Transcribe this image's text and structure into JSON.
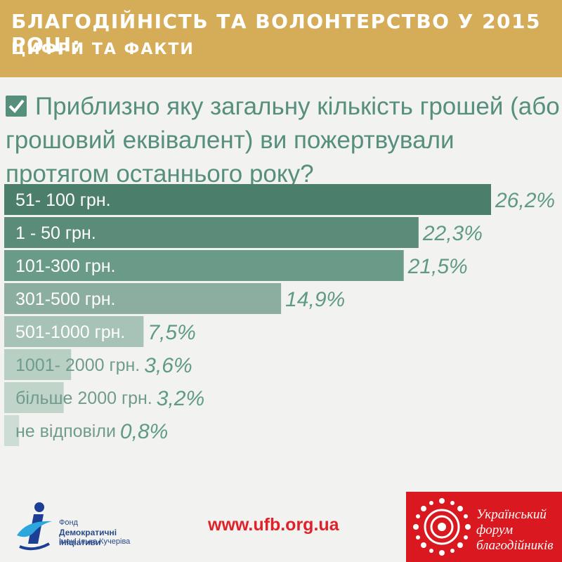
{
  "header": {
    "title": "БЛАГОДІЙНІСТЬ ТА ВОЛОНТЕРСТВО У 2015 РОЦІ:",
    "subtitle": "ЦИФРИ ТА ФАКТИ"
  },
  "question": {
    "text": "Приблизно яку загальну кількість грошей (або грошовий еквівалент) ви пожертвували протягом останнього року?"
  },
  "chart_data": {
    "type": "bar",
    "orientation": "horizontal",
    "categories": [
      "51- 100 грн.",
      "1 - 50 грн.",
      "101-300 грн.",
      "301-500 грн.",
      "501-1000 грн.",
      "1001- 2000 грн.",
      "більше 2000 грн.",
      "не відповіли"
    ],
    "values": [
      26.2,
      22.3,
      21.5,
      14.9,
      7.5,
      3.6,
      3.2,
      0.8
    ],
    "value_labels": [
      "26,2%",
      "22,3%",
      "21,5%",
      "14,9%",
      "7,5%",
      "3,6%",
      "3,2%",
      "0,8%"
    ],
    "unit": "%",
    "colors": [
      "#4c7e6c",
      "#5b8c7a",
      "#6a9b89",
      "#8caea0",
      "#a7c2b6",
      "#b8cfc4",
      "#c0d4ca",
      "#cddcd5"
    ],
    "title": "",
    "xlabel": "",
    "ylabel": "",
    "grid": false,
    "legend": "none"
  },
  "footer": {
    "url": "www.ufb.org.ua",
    "left_logo": {
      "line1": "Фонд",
      "line2": "Демократичні ініціативи",
      "line3": "імені Ілька Кучеріва",
      "color": "#2a4a8a",
      "icon": "dif-logo-icon"
    },
    "right_logo": {
      "line1": "Український",
      "line2": "форум",
      "line3": "благодійників",
      "bg": "#d9191f",
      "icon": "ufb-sun-logo-icon"
    }
  },
  "colors": {
    "header_bg": "#d5ac58",
    "accent_green": "#568f7c",
    "page_bg": "#f2f2f0",
    "url_red": "#e0212a"
  }
}
